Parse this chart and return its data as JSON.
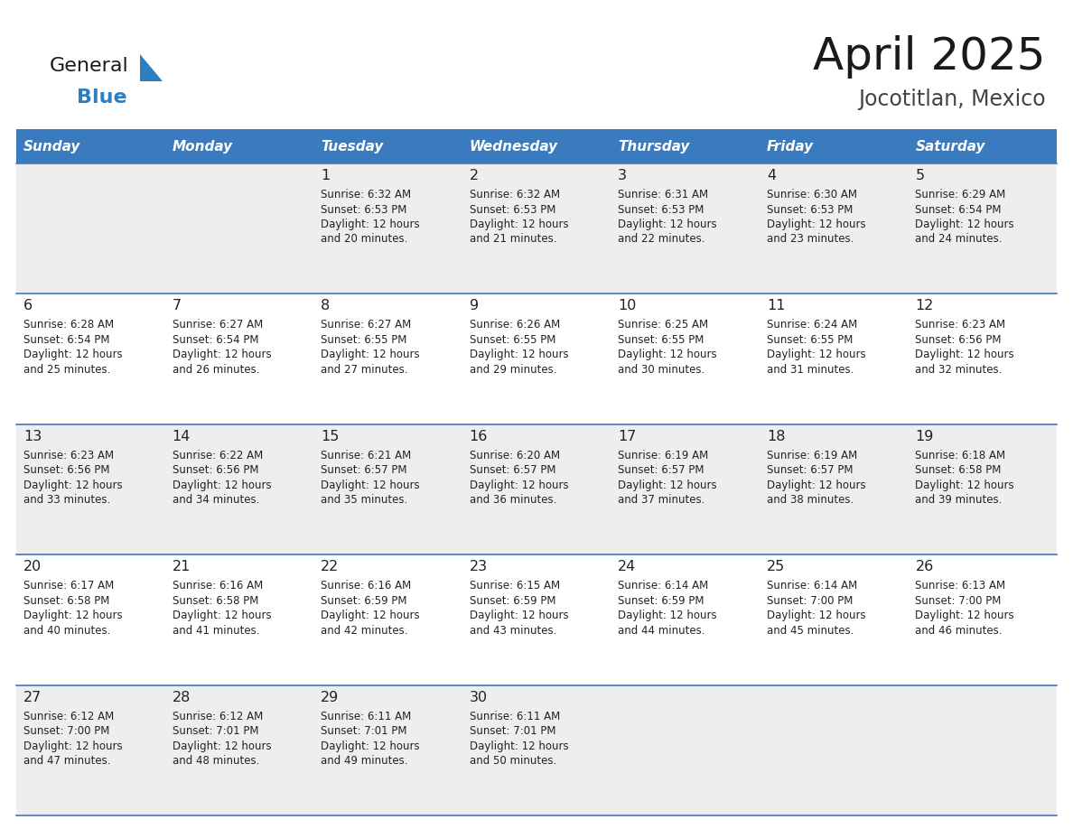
{
  "title": "April 2025",
  "subtitle": "Jocotitlan, Mexico",
  "days_of_week": [
    "Sunday",
    "Monday",
    "Tuesday",
    "Wednesday",
    "Thursday",
    "Friday",
    "Saturday"
  ],
  "header_bg": "#3a7abf",
  "header_text_color": "#ffffff",
  "row_bg_even": "#eeeeee",
  "row_bg_odd": "#ffffff",
  "cell_text_color": "#222222",
  "grid_line_color": "#3a7abf",
  "title_color": "#1a1a1a",
  "subtitle_color": "#444444",
  "logo_general_color": "#1a1a1a",
  "logo_blue_color": "#2e7fc1",
  "weeks": [
    [
      {
        "day": null,
        "sunrise": null,
        "sunset": null,
        "daylight_min": null
      },
      {
        "day": null,
        "sunrise": null,
        "sunset": null,
        "daylight_min": null
      },
      {
        "day": 1,
        "sunrise": "6:32 AM",
        "sunset": "6:53 PM",
        "daylight_min": 20
      },
      {
        "day": 2,
        "sunrise": "6:32 AM",
        "sunset": "6:53 PM",
        "daylight_min": 21
      },
      {
        "day": 3,
        "sunrise": "6:31 AM",
        "sunset": "6:53 PM",
        "daylight_min": 22
      },
      {
        "day": 4,
        "sunrise": "6:30 AM",
        "sunset": "6:53 PM",
        "daylight_min": 23
      },
      {
        "day": 5,
        "sunrise": "6:29 AM",
        "sunset": "6:54 PM",
        "daylight_min": 24
      }
    ],
    [
      {
        "day": 6,
        "sunrise": "6:28 AM",
        "sunset": "6:54 PM",
        "daylight_min": 25
      },
      {
        "day": 7,
        "sunrise": "6:27 AM",
        "sunset": "6:54 PM",
        "daylight_min": 26
      },
      {
        "day": 8,
        "sunrise": "6:27 AM",
        "sunset": "6:55 PM",
        "daylight_min": 27
      },
      {
        "day": 9,
        "sunrise": "6:26 AM",
        "sunset": "6:55 PM",
        "daylight_min": 29
      },
      {
        "day": 10,
        "sunrise": "6:25 AM",
        "sunset": "6:55 PM",
        "daylight_min": 30
      },
      {
        "day": 11,
        "sunrise": "6:24 AM",
        "sunset": "6:55 PM",
        "daylight_min": 31
      },
      {
        "day": 12,
        "sunrise": "6:23 AM",
        "sunset": "6:56 PM",
        "daylight_min": 32
      }
    ],
    [
      {
        "day": 13,
        "sunrise": "6:23 AM",
        "sunset": "6:56 PM",
        "daylight_min": 33
      },
      {
        "day": 14,
        "sunrise": "6:22 AM",
        "sunset": "6:56 PM",
        "daylight_min": 34
      },
      {
        "day": 15,
        "sunrise": "6:21 AM",
        "sunset": "6:57 PM",
        "daylight_min": 35
      },
      {
        "day": 16,
        "sunrise": "6:20 AM",
        "sunset": "6:57 PM",
        "daylight_min": 36
      },
      {
        "day": 17,
        "sunrise": "6:19 AM",
        "sunset": "6:57 PM",
        "daylight_min": 37
      },
      {
        "day": 18,
        "sunrise": "6:19 AM",
        "sunset": "6:57 PM",
        "daylight_min": 38
      },
      {
        "day": 19,
        "sunrise": "6:18 AM",
        "sunset": "6:58 PM",
        "daylight_min": 39
      }
    ],
    [
      {
        "day": 20,
        "sunrise": "6:17 AM",
        "sunset": "6:58 PM",
        "daylight_min": 40
      },
      {
        "day": 21,
        "sunrise": "6:16 AM",
        "sunset": "6:58 PM",
        "daylight_min": 41
      },
      {
        "day": 22,
        "sunrise": "6:16 AM",
        "sunset": "6:59 PM",
        "daylight_min": 42
      },
      {
        "day": 23,
        "sunrise": "6:15 AM",
        "sunset": "6:59 PM",
        "daylight_min": 43
      },
      {
        "day": 24,
        "sunrise": "6:14 AM",
        "sunset": "6:59 PM",
        "daylight_min": 44
      },
      {
        "day": 25,
        "sunrise": "6:14 AM",
        "sunset": "7:00 PM",
        "daylight_min": 45
      },
      {
        "day": 26,
        "sunrise": "6:13 AM",
        "sunset": "7:00 PM",
        "daylight_min": 46
      }
    ],
    [
      {
        "day": 27,
        "sunrise": "6:12 AM",
        "sunset": "7:00 PM",
        "daylight_min": 47
      },
      {
        "day": 28,
        "sunrise": "6:12 AM",
        "sunset": "7:01 PM",
        "daylight_min": 48
      },
      {
        "day": 29,
        "sunrise": "6:11 AM",
        "sunset": "7:01 PM",
        "daylight_min": 49
      },
      {
        "day": 30,
        "sunrise": "6:11 AM",
        "sunset": "7:01 PM",
        "daylight_min": 50
      },
      {
        "day": null,
        "sunrise": null,
        "sunset": null,
        "daylight_min": null
      },
      {
        "day": null,
        "sunrise": null,
        "sunset": null,
        "daylight_min": null
      },
      {
        "day": null,
        "sunrise": null,
        "sunset": null,
        "daylight_min": null
      }
    ]
  ]
}
